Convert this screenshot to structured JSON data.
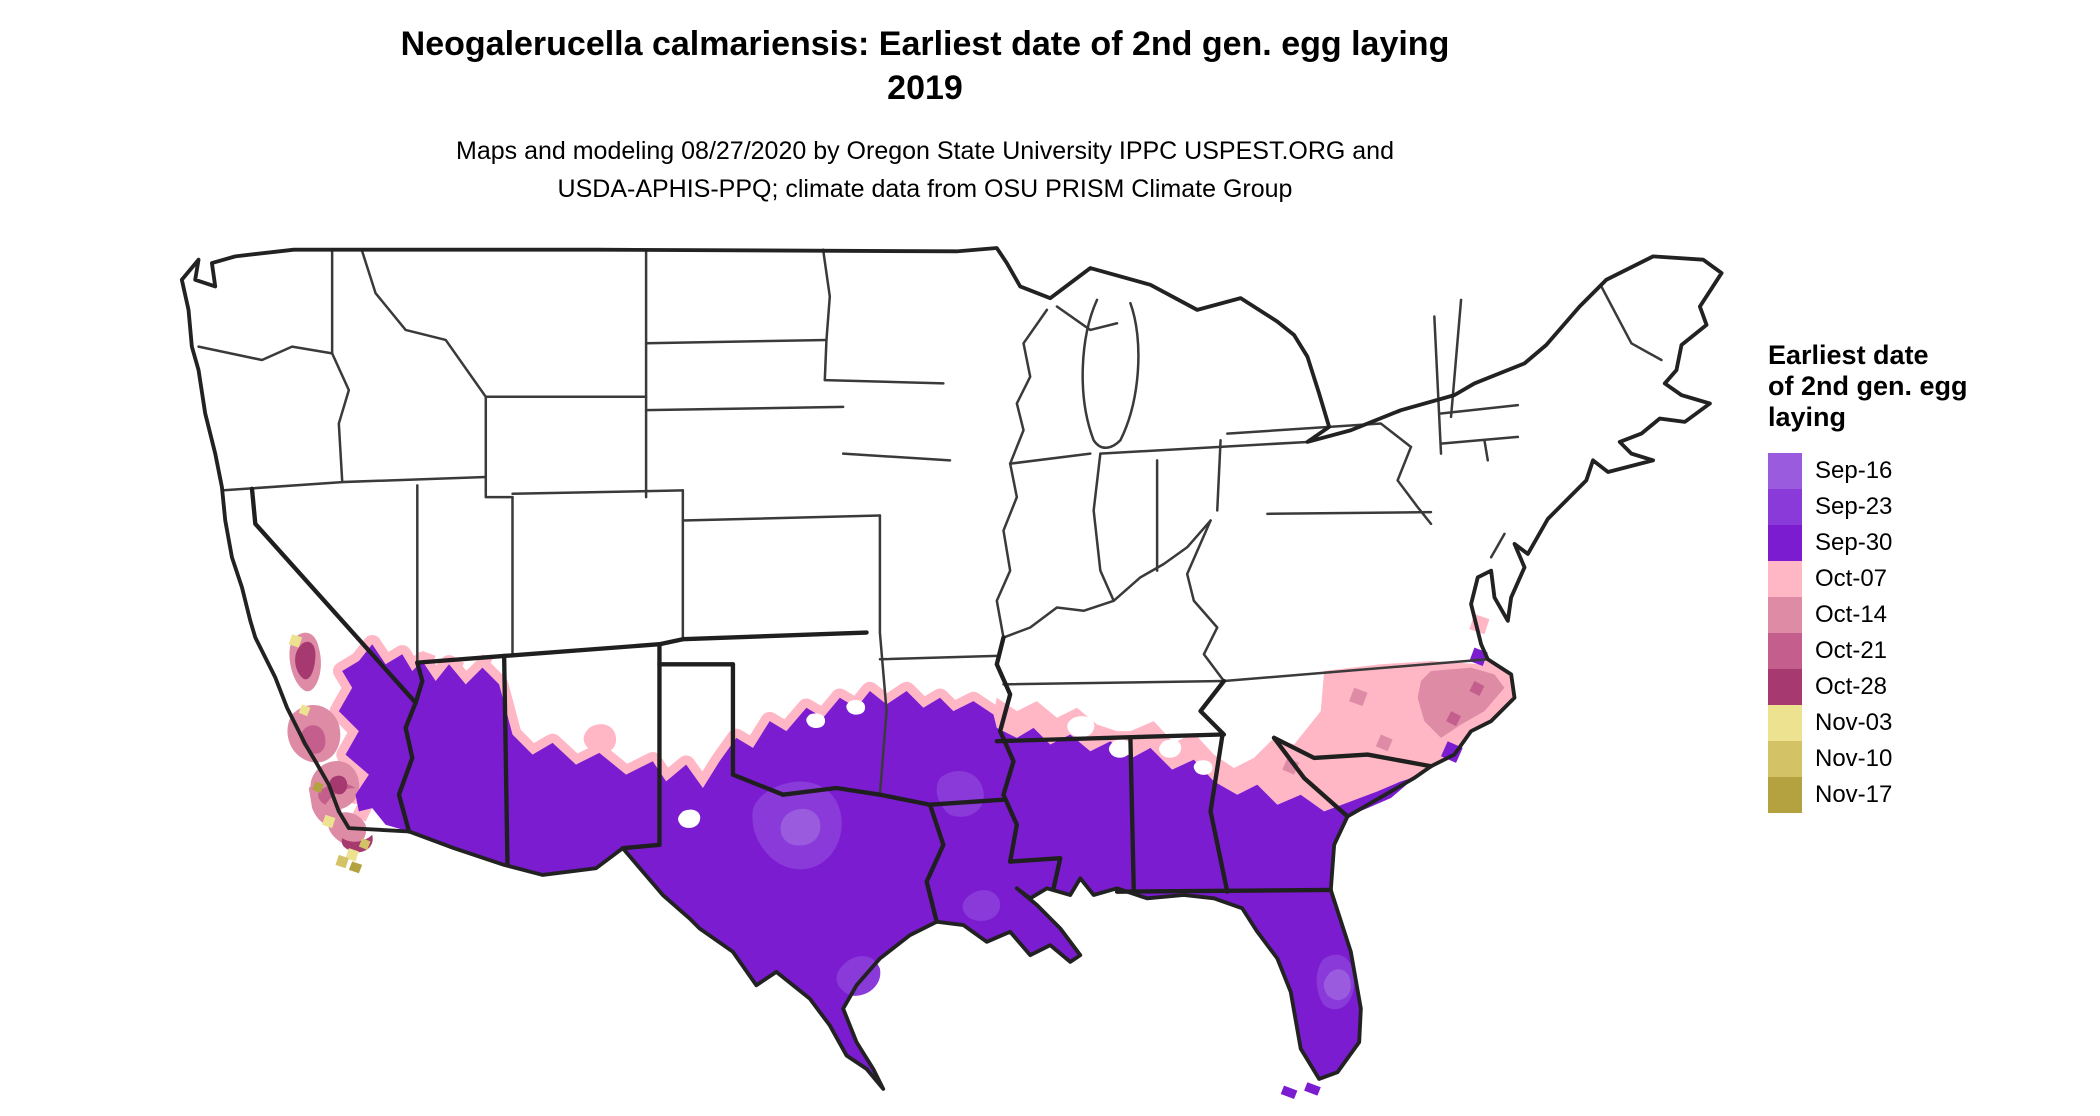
{
  "title": {
    "line1": "Neogalerucella calmariensis: Earliest date of 2nd gen. egg laying",
    "line2": "2019"
  },
  "subtitle": {
    "line1": "Maps and modeling 08/27/2020 by Oregon State University IPPC USPEST.ORG and",
    "line2": "USDA-APHIS-PPQ; climate data from OSU PRISM Climate Group"
  },
  "legend": {
    "title_lines": [
      "Earliest date",
      "of 2nd gen. egg",
      "laying"
    ],
    "items": [
      {
        "label": "Sep-16",
        "key": "sep16"
      },
      {
        "label": "Sep-23",
        "key": "sep23"
      },
      {
        "label": "Sep-30",
        "key": "sep30"
      },
      {
        "label": "Oct-07",
        "key": "oct07"
      },
      {
        "label": "Oct-14",
        "key": "oct14"
      },
      {
        "label": "Oct-21",
        "key": "oct21"
      },
      {
        "label": "Oct-28",
        "key": "oct28"
      },
      {
        "label": "Nov-03",
        "key": "nov03"
      },
      {
        "label": "Nov-10",
        "key": "nov10"
      },
      {
        "label": "Nov-17",
        "key": "nov17"
      }
    ]
  },
  "palette": {
    "sep16": "#9A5BDF",
    "sep23": "#8A3AD9",
    "sep30": "#7B1CD1",
    "oct07": "#FFB6C5",
    "oct14": "#DE8CA6",
    "oct21": "#C45F8D",
    "oct28": "#A63A70",
    "nov03": "#EDE290",
    "nov10": "#D3C266",
    "nov17": "#B3A23F"
  },
  "map": {
    "background": "#FFFFFF",
    "state_border_color": "#2E2E2E",
    "outline_color": "#222222"
  }
}
